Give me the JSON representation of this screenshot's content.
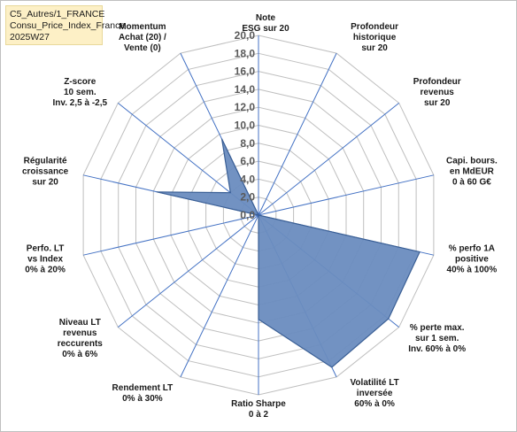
{
  "title": {
    "line1": "C5_Autres/1_FRANCE",
    "line2": "Consu_Price_Index_France",
    "line3": "2025W27"
  },
  "colors": {
    "fill": "#6a8cbf",
    "stroke": "#3a5f95",
    "grid": "#bfbfbf",
    "spoke": "#4472c4",
    "tick": "#595959",
    "title_bg": "#fdf0c6"
  },
  "chart_data": {
    "type": "radar",
    "rmin": 0,
    "rmax": 20,
    "tick_step": 2,
    "tick_labels": [
      "0,0",
      "2,0",
      "4,0",
      "6,0",
      "8,0",
      "10,0",
      "12,0",
      "14,0",
      "16,0",
      "18,0",
      "20,0"
    ],
    "grid": true,
    "legend": "none",
    "axes": [
      {
        "label": [
          "Note",
          "ESG sur 20"
        ],
        "value": 0
      },
      {
        "label": [
          "Profondeur",
          "historique",
          "sur 20"
        ],
        "value": 0
      },
      {
        "label": [
          "Profondeur",
          "revenus",
          "sur 20"
        ],
        "value": 0
      },
      {
        "label": [
          "Capi. bours.",
          "en MdEUR",
          "0 à 60 G€"
        ],
        "value": 0
      },
      {
        "label": [
          "% perfo 1A",
          "positive",
          "40% à 100%"
        ],
        "value": 18.4
      },
      {
        "label": [
          "% perte max.",
          "sur 1 sem.",
          "Inv. 60% à 0%"
        ],
        "value": 18.5
      },
      {
        "label": [
          "Volatilité LT",
          "inversée",
          "60% à 0%"
        ],
        "value": 18.8
      },
      {
        "label": [
          "Ratio Sharpe",
          "0 à 2"
        ],
        "value": 11.6
      },
      {
        "label": [
          "Rendement LT",
          "0% à 30%"
        ],
        "value": 0
      },
      {
        "label": [
          "Niveau LT",
          "revenus",
          "reccurents",
          "0% à 6%"
        ],
        "value": 0
      },
      {
        "label": [
          "Perfo. LT",
          "vs Index",
          "0% à 20%"
        ],
        "value": 0
      },
      {
        "label": [
          "Régularité",
          "croissance",
          "sur 20"
        ],
        "value": 11.6
      },
      {
        "label": [
          "Z-score",
          "10 sem.",
          "Inv. 2,5 à -2,5"
        ],
        "value": 4.0
      },
      {
        "label": [
          "Momentum",
          "Achat (20) /",
          "Vente (0)"
        ],
        "value": 9.4
      }
    ]
  }
}
